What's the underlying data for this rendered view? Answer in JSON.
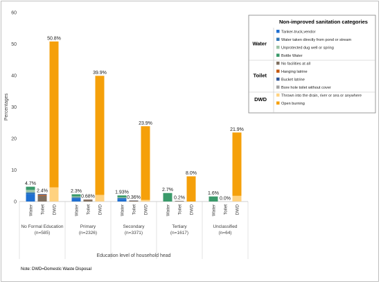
{
  "chart_data": {
    "type": "bar",
    "stacked": true,
    "ylabel": "Percentages",
    "xlabel": "Education level of household head",
    "ylim": [
      0,
      60
    ],
    "yticks": [
      0,
      10,
      20,
      30,
      40,
      50,
      60
    ],
    "grid": false,
    "legend_position": "right",
    "legend_title": "Non-improved sanitation categories",
    "note": "Note: DWD=Domestic Waste Disposal",
    "bar_types": [
      "Water",
      "Toilet",
      "DWD"
    ],
    "groups": [
      {
        "name": "No Formal Education",
        "n": "(n=585)"
      },
      {
        "name": "Primary",
        "n": "(n=2326)"
      },
      {
        "name": "Secondary",
        "n": "(n=3371)"
      },
      {
        "name": "Tertiary",
        "n": "(n=1617)"
      },
      {
        "name": "Unclassified",
        "n": "(n=64)"
      }
    ],
    "series": [
      {
        "name": "Tanker-truck,vendor",
        "bar": "Water",
        "color": "#1f6fd1",
        "values": [
          2.4,
          1.0,
          0.83,
          0,
          0
        ]
      },
      {
        "name": "Water taken directly from pond or stream",
        "bar": "Water",
        "color": "#2e75b6",
        "values": [
          0.5,
          0.3,
          0.3,
          0,
          0
        ]
      },
      {
        "name": "Unprotected dug well or spring",
        "bar": "Water",
        "color": "#9dc3a6",
        "values": [
          0.8,
          0.3,
          0.2,
          0,
          0
        ]
      },
      {
        "name": "Bottle Water",
        "bar": "Water",
        "color": "#3a9a6a",
        "values": [
          1.0,
          0.7,
          0.6,
          2.7,
          1.6
        ]
      },
      {
        "name": "No facilities at all",
        "bar": "Toilet",
        "color": "#7f6f5f",
        "values": [
          1.8,
          0.5,
          0.25,
          0.15,
          0
        ]
      },
      {
        "name": "Hanging latrine",
        "bar": "Toilet",
        "color": "#c55a11",
        "values": [
          0.3,
          0.08,
          0.05,
          0.03,
          0
        ]
      },
      {
        "name": "Bucket latrine",
        "bar": "Toilet",
        "color": "#2f5597",
        "values": [
          0.2,
          0.05,
          0.03,
          0.01,
          0
        ]
      },
      {
        "name": "Bore hole toilet without cover",
        "bar": "Toilet",
        "color": "#a5a5a5",
        "values": [
          0.1,
          0.05,
          0.03,
          0.01,
          0
        ]
      },
      {
        "name": "Thrown into the drain, river or sea or anywhere",
        "bar": "DWD",
        "color": "#ffd280",
        "values": [
          4.5,
          2.1,
          0.5,
          0,
          1.8
        ]
      },
      {
        "name": "Open burning",
        "bar": "DWD",
        "color": "#f5a00a",
        "values": [
          46.3,
          37.8,
          23.4,
          8.0,
          20.1
        ]
      }
    ],
    "totals": {
      "Water": [
        4.7,
        2.3,
        1.93,
        2.7,
        1.6
      ],
      "Toilet": [
        2.4,
        0.68,
        0.36,
        0.2,
        0.0
      ],
      "DWD": [
        50.8,
        39.9,
        23.9,
        8.0,
        21.9
      ]
    },
    "total_labels": {
      "Water": [
        "4.7%",
        "2.3%",
        "1.93%",
        "2.7%",
        "1.6%"
      ],
      "Toilet": [
        "2.4%",
        "0.68%",
        "0.36%",
        "0.2%",
        "0.0%"
      ],
      "DWD": [
        "50.8%",
        "39.9%",
        "23.9%",
        "8.0%",
        "21.9%"
      ]
    },
    "legend_groups": [
      {
        "label": "Water",
        "items": [
          "Tanker-truck,vendor",
          "Water taken directly from pond or stream",
          "Unprotected dug well or spring",
          "Bottle Water"
        ]
      },
      {
        "label": "Toilet",
        "items": [
          "No facilities at all",
          "Hanging latrine",
          "Bucket latrine",
          "Bore hole toilet without cover"
        ]
      },
      {
        "label": "DWD",
        "items": [
          "Thrown into the drain, river or sea or anywhere",
          "Open burning"
        ]
      }
    ]
  }
}
